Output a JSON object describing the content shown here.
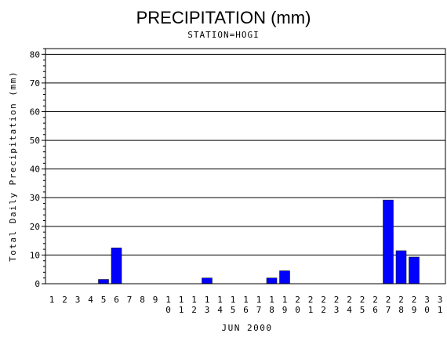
{
  "chart_data": {
    "type": "bar",
    "title": "PRECIPITATION (mm)",
    "subtitle": "STATION=HOGI",
    "xlabel": "JUN 2000",
    "ylabel": "Total Daily Precipitation (mm)",
    "ylim": [
      0,
      82
    ],
    "yticks": [
      0,
      10,
      20,
      30,
      40,
      50,
      60,
      70,
      80
    ],
    "ytick_labels": [
      "0",
      "10",
      "20",
      "30",
      "40",
      "50",
      "60",
      "70",
      "80"
    ],
    "grid": true,
    "bar_color": "#0000ff",
    "categories": [
      "1",
      "2",
      "3",
      "4",
      "5",
      "6",
      "7",
      "8",
      "9",
      "10",
      "11",
      "12",
      "13",
      "14",
      "15",
      "16",
      "17",
      "18",
      "19",
      "20",
      "21",
      "22",
      "23",
      "24",
      "25",
      "26",
      "27",
      "28",
      "29",
      "30",
      "31"
    ],
    "values": [
      0,
      0,
      0,
      0,
      1.5,
      12.5,
      0,
      0,
      0,
      0,
      0,
      0,
      2,
      0,
      0,
      0,
      0,
      2,
      4.5,
      0,
      0,
      0,
      0,
      0,
      0,
      0,
      29.2,
      11.5,
      9.3,
      0,
      0
    ]
  }
}
